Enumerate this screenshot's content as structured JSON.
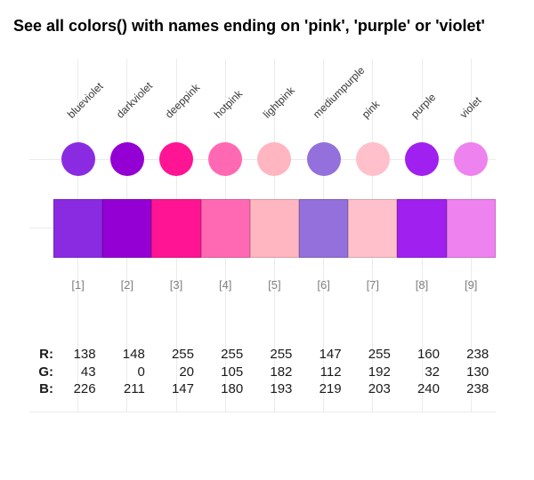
{
  "title": "See all colors() with names ending on 'pink', 'purple' or 'violet'",
  "background_color": "#ffffff",
  "chart_data": {
    "type": "table",
    "subtype": "color-swatch-chart",
    "title": "See all colors() with names ending on 'pink', 'purple' or 'violet'",
    "grid": true,
    "gridline_color": "#ebebeb",
    "name_label_color": "#383838",
    "index_label_color": "#808080",
    "value_text_color": "#1a1a1a",
    "categories": [
      "blueviolet",
      "darkviolet",
      "deeppink",
      "hotpink",
      "lightpink",
      "mediumpurple",
      "pink",
      "purple",
      "violet"
    ],
    "hex": [
      "#8A2BE2",
      "#9400D3",
      "#FF1493",
      "#FF69B4",
      "#FFB6C1",
      "#9370DB",
      "#FFC0CB",
      "#A020F0",
      "#EE82EE"
    ],
    "index_labels": [
      "[1]",
      "[2]",
      "[3]",
      "[4]",
      "[5]",
      "[6]",
      "[7]",
      "[8]",
      "[9]"
    ],
    "rgb_rows": [
      {
        "label": "R:",
        "values": [
          138,
          148,
          255,
          255,
          255,
          147,
          255,
          160,
          238
        ]
      },
      {
        "label": "G:",
        "values": [
          43,
          0,
          20,
          105,
          182,
          112,
          192,
          32,
          130
        ]
      },
      {
        "label": "B:",
        "values": [
          226,
          211,
          147,
          180,
          193,
          219,
          203,
          240,
          238
        ]
      }
    ]
  }
}
